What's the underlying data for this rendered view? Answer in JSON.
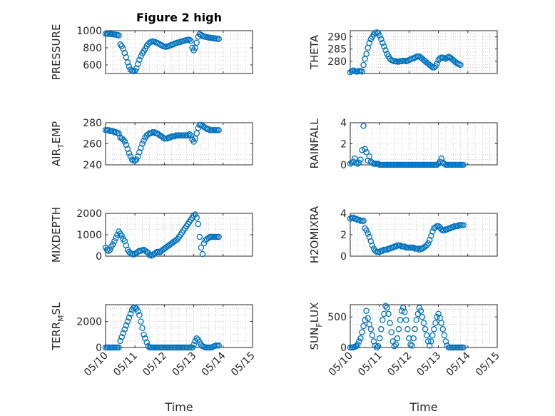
{
  "figure": {
    "title": "Figure 2 high",
    "xlabel": "Time",
    "marker_color": "#0072BD",
    "x_ticks": [
      "05/10",
      "05/11",
      "05/12",
      "05/13",
      "05/14",
      "05/15"
    ]
  },
  "chart_data": [
    {
      "type": "scatter",
      "ylabel": "PRESSURE",
      "ylabel_sub": "",
      "ylabel_post": "",
      "xlim": [
        0,
        5
      ],
      "ylim": [
        500,
        1000
      ],
      "yticks": [
        600,
        800,
        1000
      ],
      "grid": true,
      "x": [
        0.0,
        0.05,
        0.1,
        0.15,
        0.2,
        0.25,
        0.3,
        0.35,
        0.4,
        0.45,
        0.5,
        0.55,
        0.6,
        0.65,
        0.7,
        0.75,
        0.8,
        0.85,
        0.9,
        0.95,
        1.0,
        1.05,
        1.1,
        1.15,
        1.2,
        1.25,
        1.3,
        1.35,
        1.4,
        1.45,
        1.5,
        1.55,
        1.6,
        1.65,
        1.7,
        1.75,
        1.8,
        1.85,
        1.9,
        1.95,
        2.0,
        2.05,
        2.1,
        2.15,
        2.2,
        2.25,
        2.3,
        2.35,
        2.4,
        2.45,
        2.5,
        2.55,
        2.6,
        2.65,
        2.7,
        2.75,
        2.8,
        2.85,
        2.9,
        2.95,
        3.0,
        3.05,
        3.1,
        3.15,
        3.2,
        3.25,
        3.3,
        3.35,
        3.4,
        3.45,
        3.5,
        3.55,
        3.6,
        3.65,
        3.7,
        3.75,
        3.8,
        3.85
      ],
      "y": [
        965,
        965,
        963,
        962,
        960,
        958,
        955,
        953,
        950,
        945,
        840,
        820,
        790,
        740,
        690,
        630,
        580,
        545,
        530,
        525,
        530,
        560,
        610,
        660,
        700,
        735,
        760,
        790,
        820,
        845,
        860,
        870,
        875,
        872,
        865,
        858,
        850,
        840,
        830,
        820,
        815,
        812,
        815,
        820,
        828,
        835,
        840,
        848,
        855,
        860,
        865,
        870,
        875,
        880,
        885,
        890,
        895,
        895,
        880,
        800,
        770,
        800,
        860,
        930,
        960,
        950,
        940,
        932,
        928,
        925,
        920,
        918,
        915,
        912,
        910,
        908,
        905,
        903
      ]
    },
    {
      "type": "scatter",
      "ylabel": "THETA",
      "ylabel_sub": "",
      "ylabel_post": "",
      "xlim": [
        0,
        5
      ],
      "ylim": [
        275,
        292.5
      ],
      "yticks": [
        280,
        285,
        290
      ],
      "grid": true,
      "x": [
        0.0,
        0.05,
        0.1,
        0.15,
        0.2,
        0.25,
        0.3,
        0.35,
        0.4,
        0.45,
        0.5,
        0.55,
        0.6,
        0.65,
        0.7,
        0.75,
        0.8,
        0.85,
        0.9,
        0.95,
        1.0,
        1.05,
        1.1,
        1.15,
        1.2,
        1.25,
        1.3,
        1.35,
        1.4,
        1.45,
        1.5,
        1.55,
        1.6,
        1.65,
        1.7,
        1.75,
        1.8,
        1.85,
        1.9,
        1.95,
        2.0,
        2.05,
        2.1,
        2.15,
        2.2,
        2.25,
        2.3,
        2.35,
        2.4,
        2.45,
        2.5,
        2.55,
        2.6,
        2.65,
        2.7,
        2.75,
        2.8,
        2.85,
        2.9,
        2.95,
        3.0,
        3.05,
        3.1,
        3.15,
        3.2,
        3.25,
        3.3,
        3.35,
        3.4,
        3.45,
        3.5,
        3.55,
        3.6,
        3.65,
        3.7,
        3.75
      ],
      "y": [
        275.5,
        276.0,
        276.2,
        276.0,
        275.8,
        275.8,
        276.0,
        276.0,
        275.8,
        278.5,
        281.0,
        283.0,
        285.5,
        287.5,
        289.0,
        290.0,
        291.0,
        291.5,
        291.8,
        291.5,
        290.5,
        289.0,
        287.5,
        286.0,
        284.5,
        283.0,
        282.0,
        281.0,
        280.5,
        280.2,
        280.0,
        280.0,
        279.8,
        279.8,
        280.0,
        280.0,
        280.2,
        280.2,
        280.0,
        280.2,
        280.5,
        280.8,
        281.0,
        281.2,
        281.5,
        281.8,
        282.0,
        282.0,
        281.5,
        281.0,
        280.5,
        280.0,
        279.5,
        279.0,
        278.5,
        278.0,
        277.5,
        277.5,
        278.0,
        279.0,
        280.5,
        281.2,
        281.5,
        281.5,
        281.2,
        281.0,
        281.5,
        281.8,
        281.5,
        281.0,
        280.5,
        280.0,
        279.5,
        279.0,
        278.8,
        278.5
      ]
    },
    {
      "type": "scatter",
      "ylabel": "AIR",
      "ylabel_sub": "T",
      "ylabel_post": "EMP",
      "xlim": [
        0,
        5
      ],
      "ylim": [
        240,
        280
      ],
      "yticks": [
        240,
        260,
        280
      ],
      "grid": true,
      "x": [
        0.0,
        0.05,
        0.1,
        0.15,
        0.2,
        0.25,
        0.3,
        0.35,
        0.4,
        0.45,
        0.5,
        0.55,
        0.6,
        0.65,
        0.7,
        0.75,
        0.8,
        0.85,
        0.9,
        0.95,
        1.0,
        1.05,
        1.1,
        1.15,
        1.2,
        1.25,
        1.3,
        1.35,
        1.4,
        1.45,
        1.5,
        1.55,
        1.6,
        1.65,
        1.7,
        1.75,
        1.8,
        1.85,
        1.9,
        1.95,
        2.0,
        2.05,
        2.1,
        2.15,
        2.2,
        2.25,
        2.3,
        2.35,
        2.4,
        2.45,
        2.5,
        2.55,
        2.6,
        2.65,
        2.7,
        2.75,
        2.8,
        2.85,
        2.9,
        2.95,
        3.0,
        3.05,
        3.1,
        3.15,
        3.2,
        3.25,
        3.3,
        3.35,
        3.4,
        3.45,
        3.5,
        3.55,
        3.6,
        3.65,
        3.7,
        3.75,
        3.8,
        3.85
      ],
      "y": [
        273,
        273,
        273,
        272,
        272,
        272,
        271,
        271,
        270,
        270,
        266,
        265,
        264,
        262,
        259,
        255,
        251,
        248,
        245,
        244,
        244,
        245,
        248,
        252,
        256,
        260,
        263,
        266,
        268,
        269,
        270,
        270,
        271,
        271,
        270,
        270,
        269,
        268,
        267,
        266,
        265,
        265,
        265,
        266,
        266,
        267,
        267,
        267,
        268,
        268,
        268,
        268,
        268,
        268,
        268,
        268,
        268,
        269,
        268,
        264,
        262,
        265,
        270,
        275,
        278,
        278,
        277,
        276,
        275,
        274,
        274,
        273,
        273,
        273,
        273,
        273,
        273,
        273
      ]
    },
    {
      "type": "scatter",
      "ylabel": "RAINFALL",
      "ylabel_sub": "",
      "ylabel_post": "",
      "xlim": [
        0,
        5
      ],
      "ylim": [
        0,
        4
      ],
      "yticks": [
        0,
        2,
        4
      ],
      "grid": true,
      "x": [
        0.0,
        0.05,
        0.1,
        0.15,
        0.2,
        0.25,
        0.3,
        0.35,
        0.4,
        0.45,
        0.5,
        0.55,
        0.6,
        0.65,
        0.7,
        0.75,
        0.8,
        0.85,
        0.9,
        0.95,
        1.0,
        1.05,
        1.1,
        1.15,
        1.2,
        1.25,
        1.3,
        1.35,
        1.4,
        1.45,
        1.5,
        1.55,
        1.6,
        1.65,
        1.7,
        1.75,
        1.8,
        1.85,
        1.9,
        1.95,
        2.0,
        2.05,
        2.1,
        2.15,
        2.2,
        2.25,
        2.3,
        2.35,
        2.4,
        2.45,
        2.5,
        2.55,
        2.6,
        2.65,
        2.7,
        2.75,
        2.8,
        2.85,
        2.9,
        2.95,
        3.0,
        3.05,
        3.1,
        3.15,
        3.2,
        3.25,
        3.3,
        3.35,
        3.4,
        3.45,
        3.5,
        3.55,
        3.6,
        3.65,
        3.7,
        3.75,
        3.8,
        3.85
      ],
      "y": [
        0.1,
        0.2,
        0.3,
        0.6,
        0.2,
        0.1,
        0.2,
        0.5,
        1.4,
        3.7,
        1.5,
        1.2,
        0.4,
        0.8,
        0.3,
        0.2,
        0.1,
        0.1,
        0.1,
        0.1,
        0.0,
        0.0,
        0.0,
        0.0,
        0.0,
        0.0,
        0.0,
        0.0,
        0.0,
        0.0,
        0.0,
        0.0,
        0.0,
        0.0,
        0.0,
        0.0,
        0.0,
        0.0,
        0.0,
        0.0,
        0.0,
        0.0,
        0.0,
        0.0,
        0.0,
        0.0,
        0.0,
        0.0,
        0.0,
        0.0,
        0.0,
        0.0,
        0.0,
        0.0,
        0.0,
        0.0,
        0.0,
        0.0,
        0.0,
        0.0,
        0.1,
        0.3,
        0.6,
        0.2,
        0.1,
        0.0,
        0.0,
        0.0,
        0.0,
        0.0,
        0.0,
        0.0,
        0.0,
        0.0,
        0.0,
        0.0,
        0.0,
        0.0
      ]
    },
    {
      "type": "scatter",
      "ylabel": "MIXDEPTH",
      "ylabel_sub": "",
      "ylabel_post": "",
      "xlim": [
        0,
        5
      ],
      "ylim": [
        0,
        2000
      ],
      "yticks": [
        0,
        1000,
        2000
      ],
      "grid": true,
      "x": [
        0.0,
        0.05,
        0.1,
        0.15,
        0.2,
        0.25,
        0.3,
        0.35,
        0.4,
        0.45,
        0.5,
        0.55,
        0.6,
        0.65,
        0.7,
        0.75,
        0.8,
        0.85,
        0.9,
        0.95,
        1.0,
        1.05,
        1.1,
        1.15,
        1.2,
        1.25,
        1.3,
        1.35,
        1.4,
        1.45,
        1.5,
        1.55,
        1.6,
        1.65,
        1.7,
        1.75,
        1.8,
        1.85,
        1.9,
        1.95,
        2.0,
        2.05,
        2.1,
        2.15,
        2.2,
        2.25,
        2.3,
        2.35,
        2.4,
        2.45,
        2.5,
        2.55,
        2.6,
        2.65,
        2.7,
        2.75,
        2.8,
        2.85,
        2.9,
        2.95,
        3.0,
        3.05,
        3.1,
        3.15,
        3.2,
        3.25,
        3.3,
        3.35,
        3.4,
        3.45,
        3.5,
        3.55,
        3.6,
        3.65,
        3.7,
        3.75,
        3.8,
        3.85
      ],
      "y": [
        400,
        300,
        250,
        300,
        450,
        550,
        700,
        850,
        1000,
        1150,
        1050,
        950,
        800,
        700,
        500,
        300,
        200,
        150,
        100,
        80,
        100,
        150,
        200,
        250,
        250,
        280,
        300,
        250,
        200,
        150,
        50,
        20,
        50,
        100,
        150,
        200,
        200,
        180,
        250,
        300,
        350,
        400,
        450,
        500,
        550,
        600,
        650,
        700,
        750,
        800,
        900,
        1000,
        1100,
        1200,
        1300,
        1400,
        1500,
        1600,
        1700,
        1800,
        1900,
        1950,
        1800,
        1500,
        900,
        400,
        100,
        600,
        750,
        800,
        850,
        900,
        900,
        900,
        900,
        900,
        900,
        900
      ]
    },
    {
      "type": "scatter",
      "ylabel": "H2OMIXRA",
      "ylabel_sub": "",
      "ylabel_post": "",
      "xlim": [
        0,
        5
      ],
      "ylim": [
        0,
        4
      ],
      "yticks": [
        0,
        2,
        4
      ],
      "grid": true,
      "x": [
        0.0,
        0.05,
        0.1,
        0.15,
        0.2,
        0.25,
        0.3,
        0.35,
        0.4,
        0.45,
        0.5,
        0.55,
        0.6,
        0.65,
        0.7,
        0.75,
        0.8,
        0.85,
        0.9,
        0.95,
        1.0,
        1.05,
        1.1,
        1.15,
        1.2,
        1.25,
        1.3,
        1.35,
        1.4,
        1.45,
        1.5,
        1.55,
        1.6,
        1.65,
        1.7,
        1.75,
        1.8,
        1.85,
        1.9,
        1.95,
        2.0,
        2.05,
        2.1,
        2.15,
        2.2,
        2.25,
        2.3,
        2.35,
        2.4,
        2.45,
        2.5,
        2.55,
        2.6,
        2.65,
        2.7,
        2.75,
        2.8,
        2.85,
        2.9,
        2.95,
        3.0,
        3.05,
        3.1,
        3.15,
        3.2,
        3.25,
        3.3,
        3.35,
        3.4,
        3.45,
        3.5,
        3.55,
        3.6,
        3.65,
        3.7,
        3.75,
        3.8,
        3.85
      ],
      "y": [
        3.5,
        3.6,
        3.6,
        3.5,
        3.5,
        3.4,
        3.4,
        3.3,
        3.3,
        3.3,
        2.6,
        2.4,
        2.1,
        1.8,
        1.4,
        1.0,
        0.7,
        0.5,
        0.4,
        0.4,
        0.4,
        0.5,
        0.5,
        0.6,
        0.6,
        0.6,
        0.7,
        0.7,
        0.8,
        0.8,
        0.9,
        0.9,
        1.0,
        1.0,
        1.0,
        0.9,
        0.9,
        0.9,
        0.8,
        0.8,
        0.8,
        0.8,
        0.8,
        0.8,
        0.7,
        0.7,
        0.7,
        0.6,
        0.7,
        0.7,
        0.8,
        0.9,
        1.0,
        1.2,
        1.5,
        1.9,
        2.3,
        2.6,
        2.7,
        2.8,
        2.8,
        2.7,
        2.5,
        2.4,
        2.4,
        2.5,
        2.5,
        2.6,
        2.6,
        2.7,
        2.7,
        2.8,
        2.8,
        2.8,
        2.9,
        2.9,
        2.9,
        2.9
      ]
    },
    {
      "type": "scatter",
      "ylabel": "TERR",
      "ylabel_sub": "M",
      "ylabel_post": "SL",
      "xlim": [
        0,
        5
      ],
      "ylim": [
        0,
        3300
      ],
      "yticks": [
        0,
        2000
      ],
      "grid": true,
      "x": [
        0.0,
        0.05,
        0.1,
        0.15,
        0.2,
        0.25,
        0.3,
        0.35,
        0.4,
        0.45,
        0.5,
        0.55,
        0.6,
        0.65,
        0.7,
        0.75,
        0.8,
        0.85,
        0.9,
        0.95,
        1.0,
        1.05,
        1.1,
        1.15,
        1.2,
        1.25,
        1.3,
        1.35,
        1.4,
        1.45,
        1.5,
        1.55,
        1.6,
        1.65,
        1.7,
        1.75,
        1.8,
        1.85,
        1.9,
        1.95,
        2.0,
        2.05,
        2.1,
        2.15,
        2.2,
        2.25,
        2.3,
        2.35,
        2.4,
        2.45,
        2.5,
        2.55,
        2.6,
        2.65,
        2.7,
        2.75,
        2.8,
        2.85,
        2.9,
        2.95,
        3.0,
        3.05,
        3.1,
        3.15,
        3.2,
        3.25,
        3.3,
        3.35,
        3.4,
        3.45,
        3.5,
        3.55,
        3.6,
        3.65,
        3.7,
        3.75,
        3.8,
        3.85
      ],
      "y": [
        0,
        0,
        0,
        0,
        0,
        0,
        0,
        0,
        0,
        0,
        500,
        800,
        1100,
        1400,
        1700,
        2000,
        2300,
        2600,
        2900,
        3050,
        3100,
        3000,
        2800,
        2500,
        2000,
        1500,
        1000,
        700,
        400,
        100,
        0,
        0,
        0,
        0,
        0,
        0,
        0,
        0,
        0,
        0,
        0,
        0,
        0,
        0,
        0,
        0,
        0,
        0,
        0,
        0,
        0,
        0,
        0,
        0,
        0,
        0,
        0,
        0,
        0,
        0,
        200,
        500,
        700,
        600,
        400,
        200,
        100,
        50,
        0,
        0,
        0,
        0,
        0,
        50,
        100,
        150,
        150,
        150
      ]
    },
    {
      "type": "scatter",
      "ylabel": "SUN",
      "ylabel_sub": "F",
      "ylabel_post": "LUX",
      "xlim": [
        0,
        5
      ],
      "ylim": [
        0,
        700
      ],
      "yticks": [
        0,
        500
      ],
      "grid": true,
      "x": [
        0.0,
        0.05,
        0.1,
        0.15,
        0.2,
        0.25,
        0.3,
        0.35,
        0.4,
        0.45,
        0.5,
        0.55,
        0.6,
        0.65,
        0.7,
        0.75,
        0.8,
        0.85,
        0.9,
        0.95,
        1.0,
        1.05,
        1.1,
        1.15,
        1.2,
        1.25,
        1.3,
        1.35,
        1.4,
        1.45,
        1.5,
        1.55,
        1.6,
        1.65,
        1.7,
        1.75,
        1.8,
        1.85,
        1.9,
        1.95,
        2.0,
        2.05,
        2.1,
        2.15,
        2.2,
        2.25,
        2.3,
        2.35,
        2.4,
        2.45,
        2.5,
        2.55,
        2.6,
        2.65,
        2.7,
        2.75,
        2.8,
        2.85,
        2.9,
        2.95,
        3.0,
        3.05,
        3.1,
        3.15,
        3.2,
        3.25,
        3.3,
        3.35,
        3.4,
        3.45,
        3.5,
        3.55,
        3.6,
        3.65,
        3.7,
        3.75,
        3.8,
        3.85
      ],
      "y": [
        0,
        0,
        0,
        10,
        20,
        50,
        100,
        150,
        250,
        350,
        450,
        600,
        480,
        380,
        300,
        200,
        100,
        30,
        0,
        20,
        150,
        300,
        450,
        550,
        680,
        650,
        550,
        400,
        250,
        100,
        20,
        50,
        150,
        300,
        450,
        600,
        650,
        580,
        450,
        300,
        150,
        50,
        30,
        150,
        300,
        450,
        550,
        650,
        600,
        500,
        400,
        300,
        200,
        100,
        30,
        100,
        200,
        300,
        400,
        500,
        550,
        480,
        400,
        300,
        200,
        100,
        30,
        0,
        0,
        0,
        0,
        0,
        0,
        0,
        0,
        0,
        0,
        0
      ]
    }
  ]
}
